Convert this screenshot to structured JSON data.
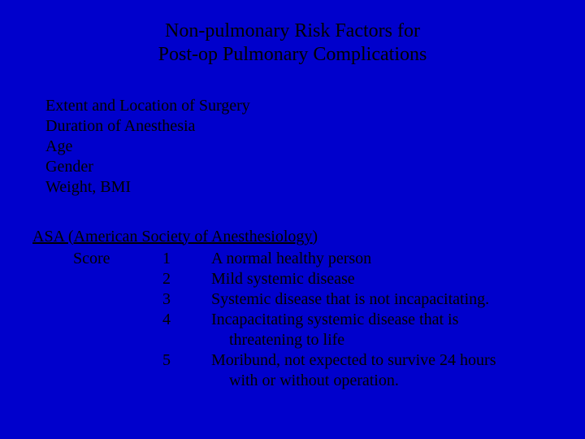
{
  "colors": {
    "background": "#0000cc",
    "text": "#000000"
  },
  "title": {
    "line1": "Non-pulmonary Risk Factors for",
    "line2": "Post-op Pulmonary Complications",
    "fontsize": 24
  },
  "risk_factors": {
    "fontsize": 20,
    "items": [
      "Extent and Location of Surgery",
      "Duration of Anesthesia",
      "Age",
      "Gender",
      "Weight, BMI"
    ]
  },
  "asa": {
    "header": "ASA (American Society of Anesthesiology)",
    "score_label": "Score",
    "fontsize": 20,
    "rows": [
      {
        "num": "1",
        "desc": "A normal healthy person"
      },
      {
        "num": "2",
        "desc": "Mild systemic disease"
      },
      {
        "num": "3",
        "desc": "Systemic disease that is not incapacitating."
      },
      {
        "num": "4",
        "desc": "Incapacitating systemic disease that is",
        "desc_cont": "threatening to life"
      },
      {
        "num": "5",
        "desc": "Moribund, not expected to survive 24  hours",
        "desc_cont": "with or without operation."
      }
    ]
  }
}
